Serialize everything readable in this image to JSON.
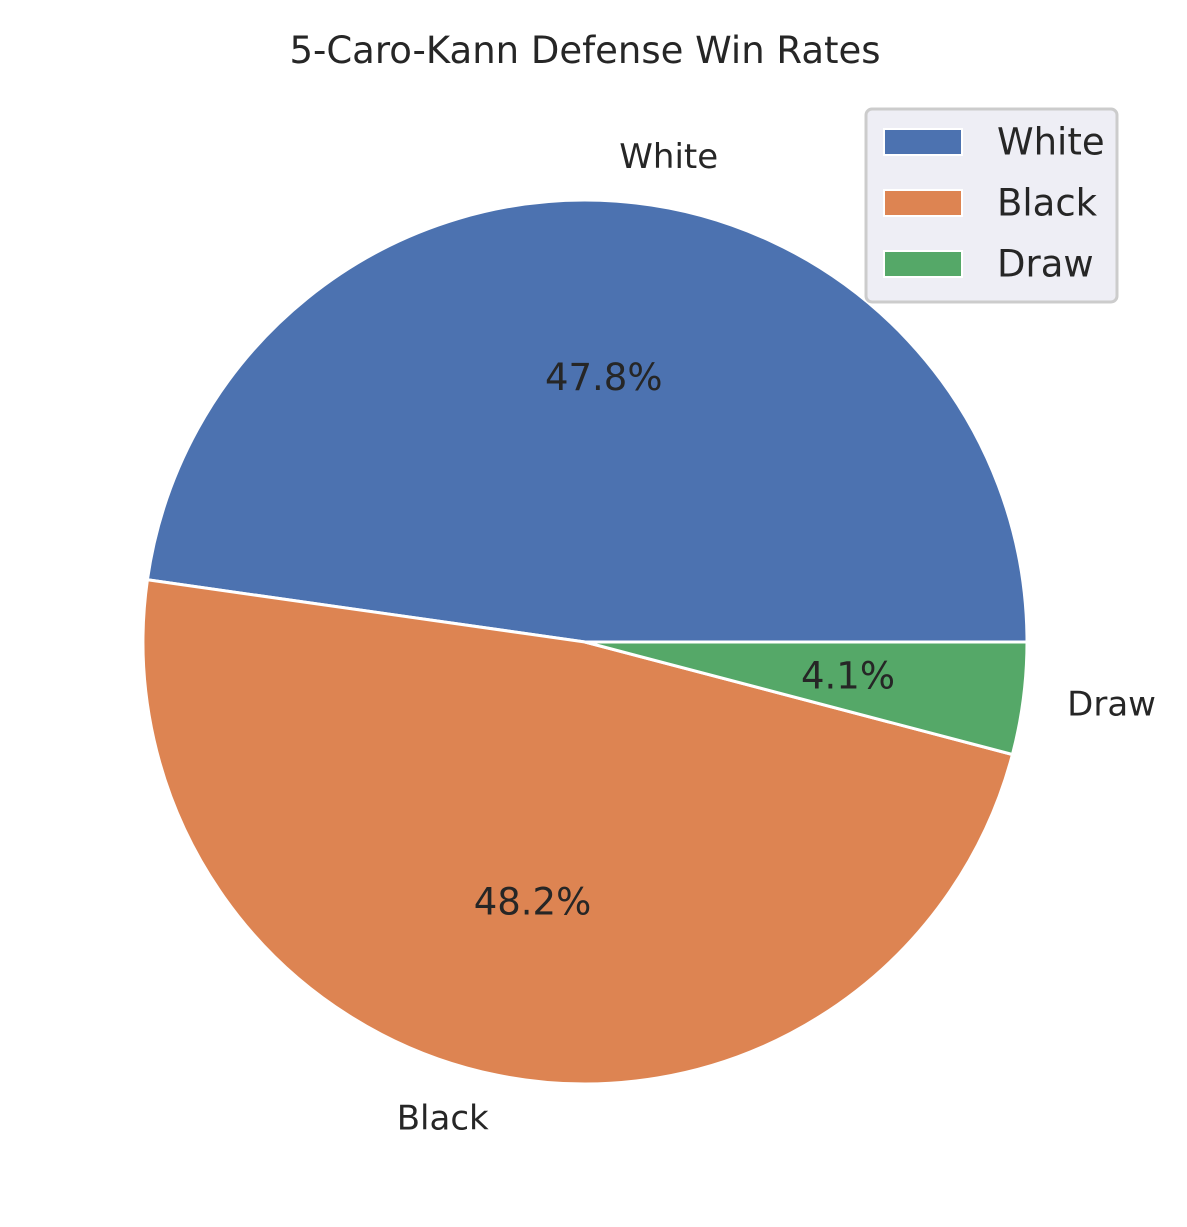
{
  "chart_data": {
    "type": "pie",
    "title": "5-Caro-Kann Defense Win Rates",
    "categories": [
      "White",
      "Black",
      "Draw"
    ],
    "values": [
      47.8,
      48.2,
      4.1
    ],
    "percent_labels": [
      "47.8%",
      "48.2%",
      "4.1%"
    ],
    "colors": [
      "#4c72b0",
      "#dd8452",
      "#55a868"
    ],
    "start_angle_deg": 0,
    "direction": "counterclockwise",
    "legend": {
      "placement": "top-right",
      "entries": [
        "White",
        "Black",
        "Draw"
      ]
    }
  }
}
